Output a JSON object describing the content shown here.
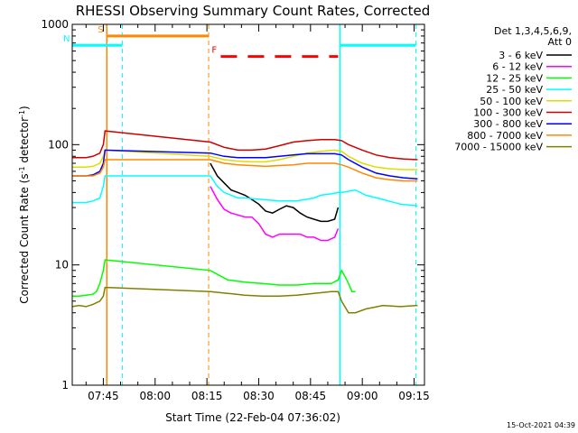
{
  "chart_data": {
    "type": "line",
    "title": "RHESSI Observing Summary Count Rates, Corrected",
    "xlabel": "Start Time (22-Feb-04 07:36:02)",
    "ylabel": "Corrected Count Rate (s",
    "ylabel_sup1": "-1",
    "ylabel_mid": " detector",
    "ylabel_sup2": "-1",
    "ylabel_end": ")",
    "x_unit": "minutes after 07:36:02",
    "xlim": [
      0,
      102
    ],
    "ylim": [
      1,
      1000
    ],
    "yscale": "log",
    "x_ticks": [
      {
        "label": "07:45",
        "value": 9
      },
      {
        "label": "08:00",
        "value": 24
      },
      {
        "label": "08:15",
        "value": 39
      },
      {
        "label": "08:30",
        "value": 54
      },
      {
        "label": "08:45",
        "value": 69
      },
      {
        "label": "09:00",
        "value": 84
      },
      {
        "label": "09:15",
        "value": 99
      }
    ],
    "y_ticks": [
      {
        "label": "1",
        "value": 1
      },
      {
        "label": "10",
        "value": 10
      },
      {
        "label": "100",
        "value": 100
      },
      {
        "label": "1000",
        "value": 1000
      }
    ],
    "legend_title": [
      "Det 1,3,4,5,6,9,",
      "Att 0"
    ],
    "legend_position": "right",
    "footer": "15-Oct-2021 04:39",
    "series": [
      {
        "name": "3 - 6 keV",
        "color": "#000000",
        "x": [
          40,
          42,
          44,
          46,
          48,
          50,
          52,
          54,
          56,
          58,
          60,
          62,
          64,
          66,
          68,
          70,
          72,
          74,
          76,
          77
        ],
        "y": [
          70,
          55,
          48,
          42,
          40,
          38,
          35,
          32,
          28,
          27,
          29,
          31,
          30,
          27,
          25,
          24,
          23,
          23,
          24,
          30
        ]
      },
      {
        "name": "6 - 12 keV",
        "color": "#ff00ff",
        "x": [
          40,
          42,
          44,
          46,
          48,
          50,
          52,
          54,
          56,
          58,
          60,
          62,
          64,
          66,
          68,
          70,
          72,
          74,
          76,
          77
        ],
        "y": [
          45,
          35,
          29,
          27,
          26,
          25,
          25,
          22,
          18,
          17,
          18,
          18,
          18,
          18,
          17,
          17,
          16,
          16,
          17,
          20
        ]
      },
      {
        "name": "12 - 25 keV",
        "color": "#00ff00",
        "x": [
          0,
          2,
          4,
          6,
          7,
          8,
          9,
          9.5,
          40,
          45,
          50,
          55,
          60,
          65,
          70,
          75,
          77,
          78,
          79,
          80,
          81,
          82
        ],
        "y": [
          5.5,
          5.5,
          5.6,
          5.7,
          6,
          7,
          9,
          11,
          9,
          7.5,
          7.2,
          7.0,
          6.8,
          6.8,
          7.0,
          7.0,
          7.5,
          9,
          8,
          7,
          6,
          6
        ]
      },
      {
        "name": "25 - 50 keV",
        "color": "#00ffff",
        "x": [
          0,
          2,
          4,
          6,
          8,
          9,
          9.5,
          40,
          42,
          44,
          46,
          48,
          50,
          55,
          60,
          65,
          70,
          72,
          75,
          77,
          78,
          80,
          82,
          85,
          90,
          95,
          100
        ],
        "y": [
          33,
          33,
          33,
          34,
          36,
          45,
          55,
          55,
          45,
          40,
          38,
          36,
          36,
          35,
          34,
          34,
          36,
          38,
          39,
          40,
          40,
          41,
          42,
          38,
          35,
          32,
          31
        ]
      },
      {
        "name": "50 - 100 keV",
        "color": "#dddd00",
        "x": [
          0,
          2,
          4,
          6,
          8,
          9,
          9.5,
          40,
          44,
          48,
          52,
          56,
          60,
          64,
          68,
          72,
          76,
          78,
          80,
          84,
          88,
          92,
          96,
          100
        ],
        "y": [
          65,
          65,
          65,
          66,
          70,
          80,
          90,
          80,
          75,
          73,
          72,
          72,
          75,
          80,
          85,
          88,
          90,
          88,
          80,
          70,
          65,
          63,
          62,
          62
        ]
      },
      {
        "name": "100 - 300 keV",
        "color": "#cc0000",
        "x": [
          0,
          2,
          4,
          6,
          8,
          9,
          9.5,
          40,
          44,
          48,
          52,
          56,
          60,
          64,
          68,
          72,
          76,
          78,
          80,
          84,
          88,
          92,
          96,
          100
        ],
        "y": [
          78,
          78,
          78,
          80,
          85,
          100,
          130,
          105,
          95,
          90,
          90,
          92,
          98,
          105,
          108,
          110,
          110,
          108,
          100,
          90,
          82,
          78,
          76,
          75
        ]
      },
      {
        "name": "300 - 800 keV",
        "color": "#0000ff",
        "x": [
          0,
          2,
          4,
          6,
          8,
          9,
          9.5,
          40,
          44,
          48,
          52,
          56,
          60,
          64,
          68,
          72,
          76,
          78,
          80,
          84,
          88,
          92,
          96,
          100
        ],
        "y": [
          55,
          55,
          55,
          56,
          60,
          70,
          90,
          85,
          80,
          78,
          78,
          78,
          80,
          82,
          84,
          84,
          84,
          82,
          75,
          65,
          58,
          55,
          53,
          52
        ]
      },
      {
        "name": "800 - 7000 keV",
        "color": "#ff8800",
        "x": [
          0,
          2,
          4,
          6,
          8,
          9,
          9.5,
          40,
          44,
          48,
          52,
          56,
          60,
          64,
          68,
          72,
          76,
          78,
          80,
          84,
          88,
          92,
          96,
          100
        ],
        "y": [
          55,
          55,
          55,
          55,
          58,
          65,
          75,
          75,
          70,
          68,
          67,
          66,
          67,
          68,
          70,
          70,
          70,
          68,
          65,
          58,
          53,
          51,
          50,
          50
        ]
      },
      {
        "name": "7000 - 15000 keV",
        "color": "#808000",
        "x": [
          0,
          2,
          4,
          6,
          8,
          9,
          9.5,
          40,
          45,
          50,
          55,
          60,
          65,
          70,
          75,
          77,
          78,
          80,
          82,
          85,
          90,
          95,
          100
        ],
        "y": [
          4.5,
          4.6,
          4.5,
          4.7,
          5,
          5.5,
          6.5,
          6,
          5.8,
          5.6,
          5.5,
          5.5,
          5.6,
          5.8,
          6,
          6,
          5,
          4,
          4,
          4.3,
          4.6,
          4.5,
          4.6
        ]
      }
    ],
    "vertical_markers": [
      {
        "x": 10,
        "color": "#ff8800",
        "style": "solid"
      },
      {
        "x": 14.5,
        "color": "#00ffff",
        "style": "dashed"
      },
      {
        "x": 39.5,
        "color": "#ff8800",
        "style": "dashed"
      },
      {
        "x": 77.5,
        "color": "#00ffff",
        "style": "solid"
      },
      {
        "x": 99.5,
        "color": "#00ffff",
        "style": "dashed"
      }
    ],
    "flag_bars": [
      {
        "label": "S",
        "color": "#ff8800",
        "x_start": 10,
        "x_end": 39.5,
        "y": 800,
        "style": "solid"
      },
      {
        "label": "N",
        "color": "#00ffff",
        "x_start": 0,
        "x_end": 14.5,
        "y": 670,
        "style": "solid"
      },
      {
        "label": "",
        "color": "#00ffff",
        "x_start": 77.5,
        "x_end": 99.5,
        "y": 670,
        "style": "solid"
      },
      {
        "label": "F",
        "color": "#ff0000",
        "x_start": 43,
        "x_end": 77,
        "y": 540,
        "style": "dashed"
      }
    ]
  }
}
